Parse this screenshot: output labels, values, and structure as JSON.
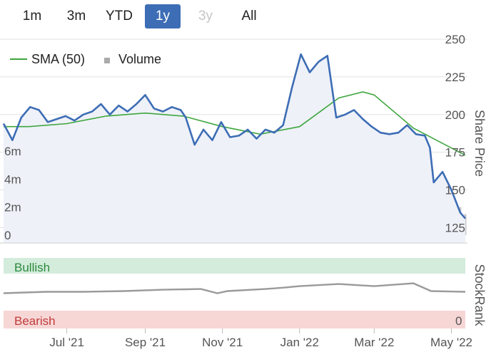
{
  "range_selector": {
    "buttons": [
      {
        "label": "1m",
        "state": "normal"
      },
      {
        "label": "3m",
        "state": "normal"
      },
      {
        "label": "YTD",
        "state": "normal"
      },
      {
        "label": "1y",
        "state": "active"
      },
      {
        "label": "3y",
        "state": "disabled"
      },
      {
        "label": "All",
        "state": "normal"
      }
    ]
  },
  "colors": {
    "price_line": "#3d6db5",
    "price_fill": "#eef1f8",
    "sma_line": "#3ea63e",
    "volume_bar": "#c8c8c8",
    "stockrank_line": "#9a9a9a",
    "bullish_band": "#d3ecdc",
    "bullish_text": "#2c8a3c",
    "bearish_band": "#f7d6d6",
    "bearish_text": "#c23b3b",
    "grid": "#e2e2e2",
    "axis_text": "#555555"
  },
  "chart_data": [
    {
      "type": "line",
      "legend": {
        "position": "top-left",
        "items": [
          {
            "label": "SMA (50)",
            "symbol": "line"
          },
          {
            "label": "Volume",
            "symbol": "square"
          }
        ]
      },
      "y_axis_right": {
        "title": "Share Price",
        "range": [
          120,
          250
        ],
        "ticks": [
          "250",
          "225",
          "200",
          "175",
          "150",
          "125"
        ]
      },
      "y_axis_left": {
        "title": "",
        "range": [
          0,
          6
        ],
        "ticks": [
          "6m",
          "4m",
          "2m",
          "0"
        ]
      },
      "x_axis": {
        "ticks": [
          "Jul '21",
          "Sep '21",
          "Nov '21",
          "Jan '22",
          "Mar '22",
          "May '22"
        ],
        "tick_dates": [
          "2021-07-01",
          "2021-09-01",
          "2021-11-01",
          "2022-01-01",
          "2022-03-01",
          "2022-05-01"
        ],
        "range": [
          "2021-05-12",
          "2022-05-12"
        ]
      },
      "grid": true,
      "series": [
        {
          "name": "",
          "kind": "price",
          "points": [
            [
              "2021-05-12",
              194
            ],
            [
              "2021-05-19",
              183
            ],
            [
              "2021-05-26",
              198
            ],
            [
              "2021-06-02",
              205
            ],
            [
              "2021-06-09",
              203
            ],
            [
              "2021-06-16",
              195
            ],
            [
              "2021-06-23",
              197
            ],
            [
              "2021-06-30",
              199
            ],
            [
              "2021-07-07",
              196
            ],
            [
              "2021-07-14",
              200
            ],
            [
              "2021-07-21",
              202
            ],
            [
              "2021-07-28",
              207
            ],
            [
              "2021-08-04",
              200
            ],
            [
              "2021-08-11",
              206
            ],
            [
              "2021-08-18",
              202
            ],
            [
              "2021-08-25",
              207
            ],
            [
              "2021-09-01",
              213
            ],
            [
              "2021-09-08",
              204
            ],
            [
              "2021-09-15",
              202
            ],
            [
              "2021-09-22",
              205
            ],
            [
              "2021-09-29",
              203
            ],
            [
              "2021-10-03",
              198
            ],
            [
              "2021-10-10",
              180
            ],
            [
              "2021-10-17",
              190
            ],
            [
              "2021-10-24",
              183
            ],
            [
              "2021-10-31",
              195
            ],
            [
              "2021-11-07",
              185
            ],
            [
              "2021-11-14",
              186
            ],
            [
              "2021-11-21",
              190
            ],
            [
              "2021-11-28",
              184
            ],
            [
              "2021-12-05",
              190
            ],
            [
              "2021-12-12",
              188
            ],
            [
              "2021-12-19",
              193
            ],
            [
              "2021-12-26",
              218
            ],
            [
              "2022-01-02",
              240
            ],
            [
              "2022-01-09",
              228
            ],
            [
              "2022-01-16",
              235
            ],
            [
              "2022-01-23",
              239
            ],
            [
              "2022-01-30",
              198
            ],
            [
              "2022-02-06",
              200
            ],
            [
              "2022-02-13",
              203
            ],
            [
              "2022-02-20",
              197
            ],
            [
              "2022-02-27",
              192
            ],
            [
              "2022-03-06",
              188
            ],
            [
              "2022-03-13",
              187
            ],
            [
              "2022-03-20",
              188
            ],
            [
              "2022-03-27",
              193
            ],
            [
              "2022-04-03",
              187
            ],
            [
              "2022-04-10",
              186
            ],
            [
              "2022-04-14",
              178
            ],
            [
              "2022-04-17",
              155
            ],
            [
              "2022-04-24",
              162
            ],
            [
              "2022-05-01",
              150
            ],
            [
              "2022-05-08",
              135
            ],
            [
              "2022-05-12",
              131
            ]
          ]
        },
        {
          "name": "SMA (50)",
          "kind": "sma",
          "points": [
            [
              "2021-05-12",
              192
            ],
            [
              "2021-06-01",
              192
            ],
            [
              "2021-07-01",
              194
            ],
            [
              "2021-08-01",
              199
            ],
            [
              "2021-09-01",
              201
            ],
            [
              "2021-10-01",
              199
            ],
            [
              "2021-11-01",
              192
            ],
            [
              "2021-12-01",
              187
            ],
            [
              "2022-01-01",
              192
            ],
            [
              "2022-02-01",
              211
            ],
            [
              "2022-02-20",
              215
            ],
            [
              "2022-03-01",
              213
            ],
            [
              "2022-04-01",
              191
            ],
            [
              "2022-05-12",
              173
            ]
          ]
        },
        {
          "name": "Volume",
          "kind": "volume",
          "unit": "m",
          "points": [
            [
              "2021-05-20",
              0.6
            ],
            [
              "2021-06-05",
              1.4
            ],
            [
              "2021-06-15",
              0.7
            ],
            [
              "2021-06-28",
              0.4
            ],
            [
              "2021-07-15",
              0.5
            ],
            [
              "2021-08-05",
              0.6
            ],
            [
              "2021-08-20",
              0.5
            ],
            [
              "2021-09-10",
              0.7
            ],
            [
              "2021-09-25",
              0.5
            ],
            [
              "2021-10-10",
              0.4
            ],
            [
              "2021-10-25",
              1.4
            ],
            [
              "2021-11-10",
              0.5
            ],
            [
              "2021-11-28",
              0.6
            ],
            [
              "2021-12-15",
              2.1
            ],
            [
              "2022-01-02",
              1.0
            ],
            [
              "2022-01-20",
              0.5
            ],
            [
              "2022-02-05",
              0.6
            ],
            [
              "2022-02-22",
              0.4
            ],
            [
              "2022-03-10",
              1.0
            ],
            [
              "2022-03-28",
              1.4
            ],
            [
              "2022-04-17",
              2.0
            ],
            [
              "2022-04-28",
              0.5
            ],
            [
              "2022-05-08",
              2.0
            ],
            [
              "2022-05-12",
              1.5
            ]
          ]
        }
      ]
    },
    {
      "type": "line",
      "y_axis_right": {
        "title": "StockRank",
        "range": [
          0,
          100
        ],
        "ticks": [
          "0"
        ]
      },
      "bands": [
        {
          "label": "Bullish",
          "from": 80,
          "to": 100
        },
        {
          "label": "Bearish",
          "from": 0,
          "to": 20
        }
      ],
      "series": [
        {
          "name": "StockRank",
          "points": [
            [
              "2021-05-12",
              50
            ],
            [
              "2021-06-15",
              52
            ],
            [
              "2021-07-15",
              52
            ],
            [
              "2021-08-15",
              53
            ],
            [
              "2021-09-15",
              55
            ],
            [
              "2021-10-15",
              56
            ],
            [
              "2021-10-28",
              50
            ],
            [
              "2021-11-05",
              53
            ],
            [
              "2021-12-05",
              56
            ],
            [
              "2021-12-20",
              58
            ],
            [
              "2022-01-01",
              60
            ],
            [
              "2022-02-01",
              63
            ],
            [
              "2022-03-01",
              60
            ],
            [
              "2022-04-01",
              64
            ],
            [
              "2022-04-15",
              53
            ],
            [
              "2022-05-12",
              52
            ]
          ]
        }
      ]
    }
  ]
}
